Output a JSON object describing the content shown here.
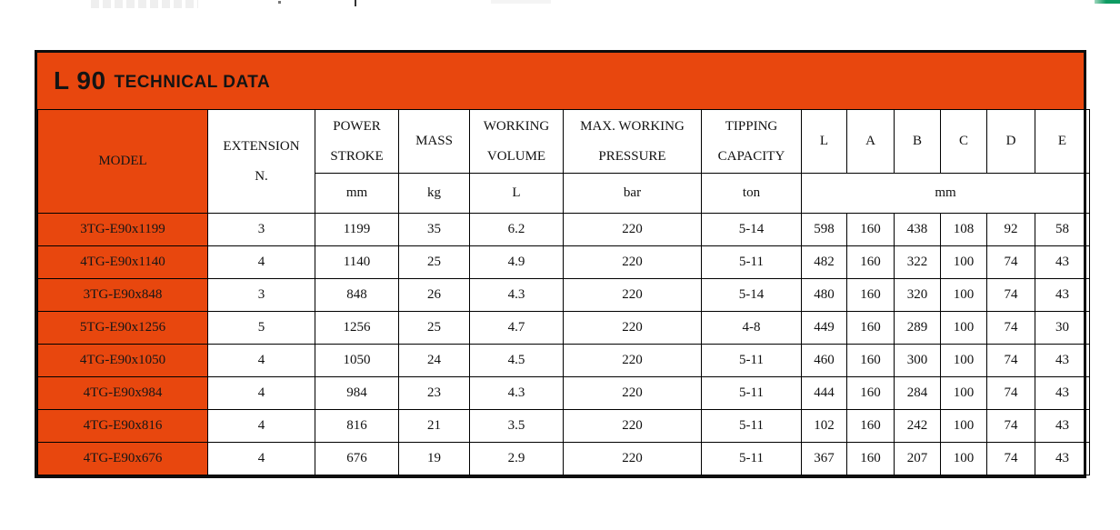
{
  "colors": {
    "accent_orange": "#e8470e",
    "top_green_bar": "#0e9b62",
    "border_black": "#000000"
  },
  "title": {
    "series": "L 90",
    "label": "TECHNICAL DATA"
  },
  "table": {
    "column_keys": [
      "model",
      "extension_n",
      "power_stroke",
      "mass",
      "working_volume",
      "max_working_pressure",
      "tipping_capacity",
      "dim_l",
      "dim_a",
      "dim_b",
      "dim_c",
      "dim_d",
      "dim_e"
    ],
    "header": {
      "model": "MODEL",
      "extension_line1": "EXTENSION",
      "extension_line2": "N.",
      "power_stroke_line1": "POWER",
      "power_stroke_line2": "STROKE",
      "mass": "MASS",
      "working_volume_line1": "WORKING",
      "working_volume_line2": "VOLUME",
      "max_working_pressure_line1": "MAX. WORKING",
      "max_working_pressure_line2": "PRESSURE",
      "tipping_capacity_line1": "TIPPING",
      "tipping_capacity_line2": "CAPACITY",
      "dim_l": "L",
      "dim_a": "A",
      "dim_b": "B",
      "dim_c": "C",
      "dim_d": "D",
      "dim_e": "E"
    },
    "units": {
      "power_stroke": "mm",
      "mass": "kg",
      "working_volume": "L",
      "max_working_pressure": "bar",
      "tipping_capacity": "ton",
      "dimensions": "mm"
    },
    "rows": [
      {
        "model": "3TG-E90x1199",
        "extension_n": "3",
        "power_stroke": "1199",
        "mass": "35",
        "working_volume": "6.2",
        "max_working_pressure": "220",
        "tipping_capacity": "5-14",
        "dim_l": "598",
        "dim_a": "160",
        "dim_b": "438",
        "dim_c": "108",
        "dim_d": "92",
        "dim_e": "58"
      },
      {
        "model": "4TG-E90x1140",
        "extension_n": "4",
        "power_stroke": "1140",
        "mass": "25",
        "working_volume": "4.9",
        "max_working_pressure": "220",
        "tipping_capacity": "5-11",
        "dim_l": "482",
        "dim_a": "160",
        "dim_b": "322",
        "dim_c": "100",
        "dim_d": "74",
        "dim_e": "43"
      },
      {
        "model": "3TG-E90x848",
        "extension_n": "3",
        "power_stroke": "848",
        "mass": "26",
        "working_volume": "4.3",
        "max_working_pressure": "220",
        "tipping_capacity": "5-14",
        "dim_l": "480",
        "dim_a": "160",
        "dim_b": "320",
        "dim_c": "100",
        "dim_d": "74",
        "dim_e": "43"
      },
      {
        "model": "5TG-E90x1256",
        "extension_n": "5",
        "power_stroke": "1256",
        "mass": "25",
        "working_volume": "4.7",
        "max_working_pressure": "220",
        "tipping_capacity": "4-8",
        "dim_l": "449",
        "dim_a": "160",
        "dim_b": "289",
        "dim_c": "100",
        "dim_d": "74",
        "dim_e": "30"
      },
      {
        "model": "4TG-E90x1050",
        "extension_n": "4",
        "power_stroke": "1050",
        "mass": "24",
        "working_volume": "4.5",
        "max_working_pressure": "220",
        "tipping_capacity": "5-11",
        "dim_l": "460",
        "dim_a": "160",
        "dim_b": "300",
        "dim_c": "100",
        "dim_d": "74",
        "dim_e": "43"
      },
      {
        "model": "4TG-E90x984",
        "extension_n": "4",
        "power_stroke": "984",
        "mass": "23",
        "working_volume": "4.3",
        "max_working_pressure": "220",
        "tipping_capacity": "5-11",
        "dim_l": "444",
        "dim_a": "160",
        "dim_b": "284",
        "dim_c": "100",
        "dim_d": "74",
        "dim_e": "43"
      },
      {
        "model": "4TG-E90x816",
        "extension_n": "4",
        "power_stroke": "816",
        "mass": "21",
        "working_volume": "3.5",
        "max_working_pressure": "220",
        "tipping_capacity": "5-11",
        "dim_l": "102",
        "dim_a": "160",
        "dim_b": "242",
        "dim_c": "100",
        "dim_d": "74",
        "dim_e": "43"
      },
      {
        "model": "4TG-E90x676",
        "extension_n": "4",
        "power_stroke": "676",
        "mass": "19",
        "working_volume": "2.9",
        "max_working_pressure": "220",
        "tipping_capacity": "5-11",
        "dim_l": "367",
        "dim_a": "160",
        "dim_b": "207",
        "dim_c": "100",
        "dim_d": "74",
        "dim_e": "43"
      }
    ]
  }
}
